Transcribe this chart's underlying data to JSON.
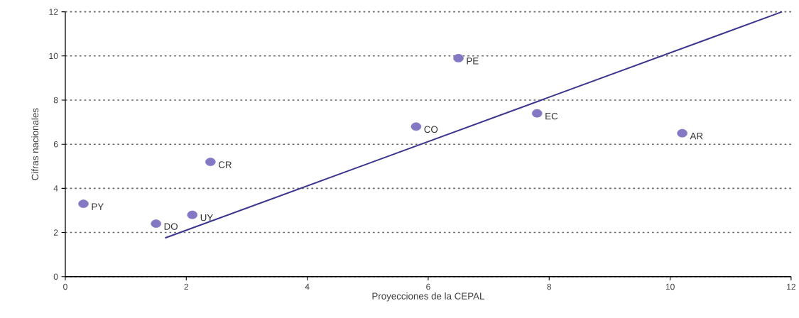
{
  "chart_data": {
    "type": "scatter",
    "xlabel": "Proyecciones de la CEPAL",
    "ylabel": "Cifras nacionales",
    "series": [
      {
        "color": "#8378c4",
        "marker": "circle",
        "x": [
          0.3,
          1.5,
          2.1,
          2.4,
          5.8,
          6.5,
          7.8,
          10.2
        ],
        "values": [
          3.3,
          2.4,
          2.8,
          5.2,
          6.8,
          9.9,
          7.4,
          6.5
        ]
      },
      {
        "type": "line",
        "color": "#3b3590",
        "marker": "none",
        "line_style": "solid",
        "x": [
          1.65,
          11.85
        ],
        "values": [
          1.75,
          12
        ]
      }
    ],
    "annotations": [
      {
        "text": "PY",
        "x": 0.3,
        "y": 3.3
      },
      {
        "text": "DO",
        "x": 1.5,
        "y": 2.4
      },
      {
        "text": "UY",
        "x": 2.1,
        "y": 2.8
      },
      {
        "text": "CR",
        "x": 2.4,
        "y": 5.2
      },
      {
        "text": "CO",
        "x": 5.8,
        "y": 6.8
      },
      {
        "text": "PE",
        "x": 6.5,
        "y": 9.9
      },
      {
        "text": "EC",
        "x": 7.8,
        "y": 7.4
      },
      {
        "text": "AR",
        "x": 10.2,
        "y": 6.5
      }
    ],
    "xlim": [
      0,
      12
    ],
    "ylim": [
      0,
      12
    ],
    "xticks": [
      0,
      2,
      4,
      6,
      8,
      10,
      12
    ],
    "yticks": [
      0,
      2,
      4,
      6,
      8,
      10,
      12
    ],
    "grid": "y"
  }
}
